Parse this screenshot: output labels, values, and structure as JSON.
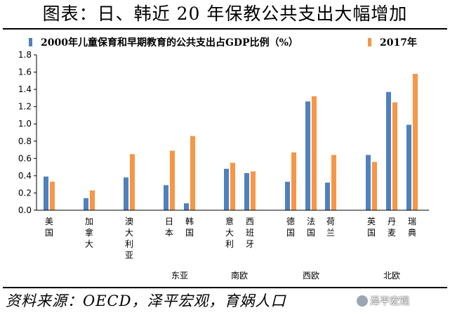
{
  "title": "图表：日、韩近 20 年保教公共支出大幅增加",
  "source": "资料来源：OECD，泽平宏观，育娲人口",
  "watermark": "泽平宏观",
  "colors": {
    "series_2000": "#4f81bd",
    "series_2017": "#f79646"
  },
  "chart_data": {
    "type": "bar",
    "categories": [
      "美国",
      "加拿大",
      "澳大利亚",
      "日本",
      "韩国",
      "意大利",
      "西班牙",
      "德国",
      "法国",
      "荷兰",
      "英国",
      "丹麦",
      "瑞典"
    ],
    "series": [
      {
        "name": "2000年儿童保育和早期教育的公共支出占GDP比例（%）",
        "values": [
          0.39,
          0.14,
          0.38,
          0.29,
          0.08,
          0.48,
          0.43,
          0.33,
          1.26,
          0.32,
          0.64,
          1.37,
          0.99
        ]
      },
      {
        "name": "2017年",
        "values": [
          0.33,
          0.23,
          0.65,
          0.69,
          0.86,
          0.55,
          0.45,
          0.67,
          1.32,
          0.64,
          0.56,
          1.25,
          1.58
        ]
      }
    ],
    "groups": [
      {
        "name": "东亚",
        "categories": [
          "日本",
          "韩国"
        ]
      },
      {
        "name": "南欧",
        "categories": [
          "意大利",
          "西班牙"
        ]
      },
      {
        "name": "西欧",
        "categories": [
          "德国",
          "法国",
          "荷兰"
        ]
      },
      {
        "name": "北欧",
        "categories": [
          "英国",
          "丹麦",
          "瑞典"
        ]
      }
    ],
    "ylim": [
      0,
      1.8
    ],
    "yticks": [
      "0.0",
      "0.2",
      "0.4",
      "0.6",
      "0.8",
      "1.0",
      "1.2",
      "1.4",
      "1.6",
      "1.8"
    ],
    "legend": "top",
    "grid": false
  }
}
